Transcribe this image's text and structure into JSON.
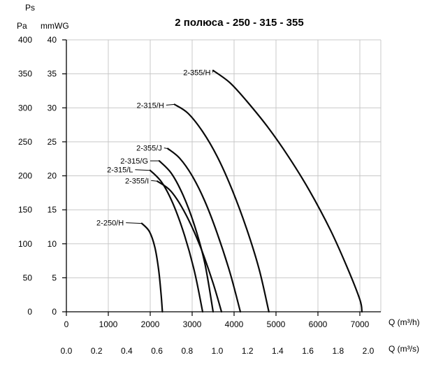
{
  "title": "2 полюса - 250 - 315 - 355",
  "axes": {
    "pressure_symbol": "Ps",
    "left_primary_unit": "Pa",
    "left_secondary_unit": "mmWG",
    "flow_hr_label": "Q (m³/h)",
    "flow_s_label": "Q (m³/s)",
    "pa_ticks": [
      0,
      50,
      100,
      150,
      200,
      250,
      300,
      350,
      400
    ],
    "mmwg_ticks": [
      0,
      5,
      10,
      15,
      20,
      25,
      30,
      35,
      40
    ],
    "flow_hr_ticks": [
      0,
      1000,
      2000,
      3000,
      4000,
      5000,
      6000,
      7000
    ],
    "flow_s_ticks": [
      0.0,
      0.2,
      0.4,
      0.6,
      0.8,
      1.0,
      1.2,
      1.4,
      1.6,
      1.8,
      2.0
    ]
  },
  "chart_data": {
    "type": "line",
    "title": "2 полюса - 250 - 315 - 355",
    "xlabel": "Q (m³/h)",
    "x2label": "Q (m³/s)",
    "ylabel": "Ps (Pa)",
    "y2label": "mmWG",
    "x_range_m3h": [
      0,
      7500
    ],
    "y_range_pa": [
      0,
      400
    ],
    "grid": true,
    "line_color": "#0a0a0a",
    "grid_color": "#c8c8c8",
    "series": [
      {
        "name": "2-355/H",
        "label": {
          "q": 3440,
          "pa": 352
        },
        "points": [
          [
            3500,
            355
          ],
          [
            3900,
            337
          ],
          [
            4300,
            310
          ],
          [
            4800,
            272
          ],
          [
            5300,
            228
          ],
          [
            5800,
            178
          ],
          [
            6300,
            120
          ],
          [
            6700,
            65
          ],
          [
            7000,
            18
          ],
          [
            7050,
            0
          ]
        ]
      },
      {
        "name": "2-315/H",
        "label": {
          "q": 2330,
          "pa": 304
        },
        "points": [
          [
            2580,
            305
          ],
          [
            2900,
            292
          ],
          [
            3250,
            265
          ],
          [
            3600,
            228
          ],
          [
            3950,
            180
          ],
          [
            4300,
            122
          ],
          [
            4600,
            62
          ],
          [
            4830,
            0
          ]
        ]
      },
      {
        "name": "2-355/J",
        "label": {
          "q": 2280,
          "pa": 241
        },
        "points": [
          [
            2420,
            240
          ],
          [
            2700,
            226
          ],
          [
            3000,
            200
          ],
          [
            3300,
            163
          ],
          [
            3600,
            115
          ],
          [
            3900,
            58
          ],
          [
            4150,
            0
          ]
        ]
      },
      {
        "name": "2-315/G",
        "label": {
          "q": 1950,
          "pa": 222
        },
        "points": [
          [
            2215,
            222
          ],
          [
            2500,
            204
          ],
          [
            2780,
            172
          ],
          [
            3050,
            128
          ],
          [
            3300,
            72
          ],
          [
            3500,
            0
          ]
        ]
      },
      {
        "name": "2-315/L",
        "label": {
          "q": 1590,
          "pa": 209
        },
        "points": [
          [
            2000,
            208
          ],
          [
            2280,
            190
          ],
          [
            2550,
            158
          ],
          [
            2820,
            112
          ],
          [
            3060,
            58
          ],
          [
            3250,
            0
          ]
        ]
      },
      {
        "name": "2-355/I",
        "label": {
          "q": 1970,
          "pa": 193
        },
        "points": [
          [
            2170,
            192
          ],
          [
            2500,
            177
          ],
          [
            2850,
            143
          ],
          [
            3200,
            95
          ],
          [
            3500,
            42
          ],
          [
            3700,
            0
          ]
        ]
      },
      {
        "name": "2-250/H",
        "label": {
          "q": 1370,
          "pa": 131
        },
        "points": [
          [
            1800,
            130
          ],
          [
            1980,
            118
          ],
          [
            2110,
            95
          ],
          [
            2200,
            62
          ],
          [
            2260,
            25
          ],
          [
            2290,
            0
          ]
        ]
      }
    ]
  }
}
